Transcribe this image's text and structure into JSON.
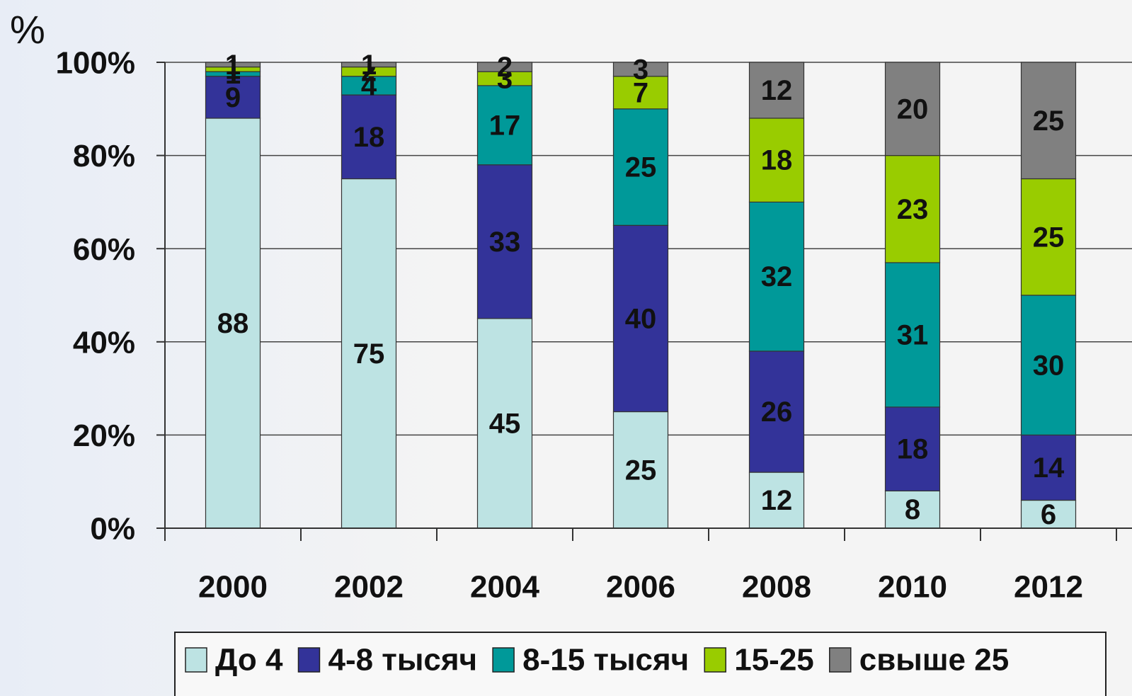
{
  "chart_data": {
    "type": "stacked_bar",
    "y_axis_label": "%",
    "categories": [
      "2000",
      "2002",
      "2004",
      "2006",
      "2008",
      "2010",
      "2012"
    ],
    "series": [
      {
        "name": "До 4",
        "color": "#bde3e3",
        "values": [
          88,
          75,
          45,
          25,
          12,
          8,
          6
        ]
      },
      {
        "name": "4-8 тысяч",
        "color": "#333399",
        "values": [
          9,
          18,
          33,
          40,
          26,
          18,
          14
        ]
      },
      {
        "name": "8-15 тысяч",
        "color": "#009999",
        "values": [
          1,
          4,
          17,
          25,
          32,
          31,
          30
        ]
      },
      {
        "name": "15-25",
        "color": "#99cc00",
        "values": [
          1,
          2,
          3,
          7,
          18,
          23,
          25
        ]
      },
      {
        "name": "свыше 25",
        "color": "#808080",
        "values": [
          1,
          1,
          2,
          3,
          12,
          20,
          25
        ]
      }
    ],
    "ylim": [
      0,
      100
    ],
    "yticks": [
      {
        "value": 0,
        "label": "0%"
      },
      {
        "value": 20,
        "label": "20%"
      },
      {
        "value": 40,
        "label": "40%"
      },
      {
        "value": 60,
        "label": "60%"
      },
      {
        "value": 80,
        "label": "80%"
      },
      {
        "value": 100,
        "label": "100%"
      }
    ],
    "grid": true,
    "legend": "bottom"
  }
}
